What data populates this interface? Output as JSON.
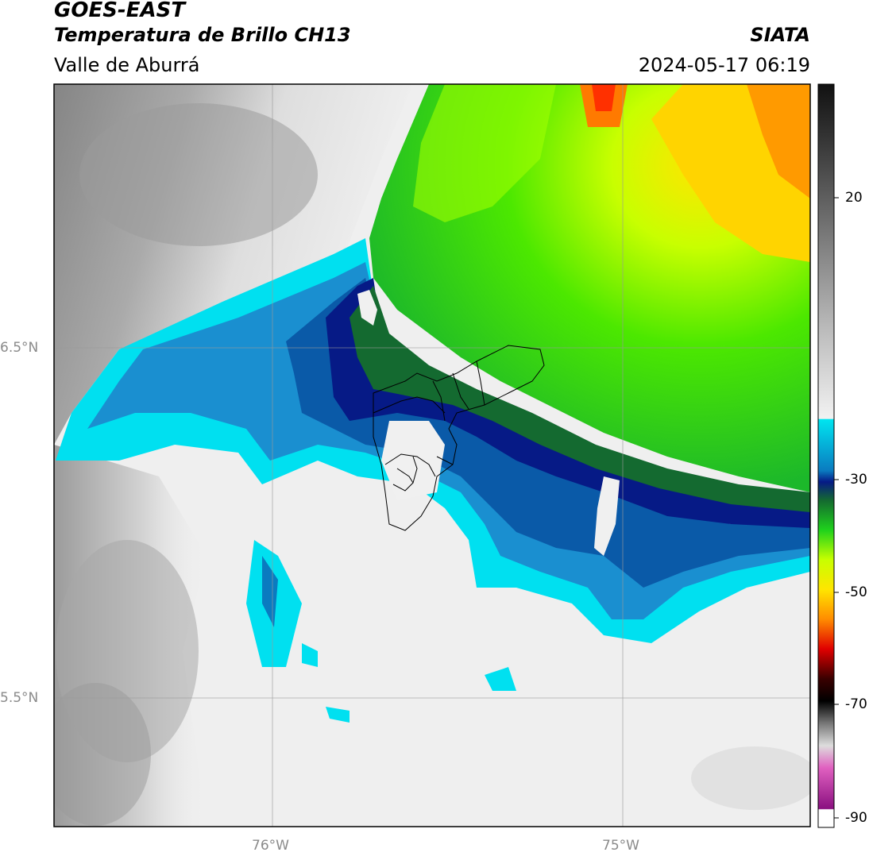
{
  "header": {
    "title": "GOES-EAST",
    "subtitle": "Temperatura de Brillo CH13",
    "region": "Valle de Aburrá",
    "organization": "SIATA",
    "timestamp": "2024-05-17 06:19"
  },
  "map": {
    "lat_labels": [
      "6.5°N",
      "5.5°N"
    ],
    "lon_labels": [
      "76°W",
      "75°W"
    ],
    "gridlines": true,
    "boundary_color": "#000000"
  },
  "colorbar": {
    "tick_labels": [
      "20",
      "-30",
      "-50",
      "-70",
      "-90"
    ],
    "palette": {
      "warm_gray": "#777777",
      "light_gray": "#f0f0f0",
      "cyan": "#00e5f0",
      "blue": "#0a7bc0",
      "navy": "#061a86",
      "dark_green": "#146a30",
      "green": "#1fd21c",
      "yellow_green": "#c8ff00",
      "yellow": "#ffe500",
      "orange": "#ff8c00",
      "red": "#e00000",
      "black": "#000000",
      "magenta": "#d040c0"
    }
  }
}
